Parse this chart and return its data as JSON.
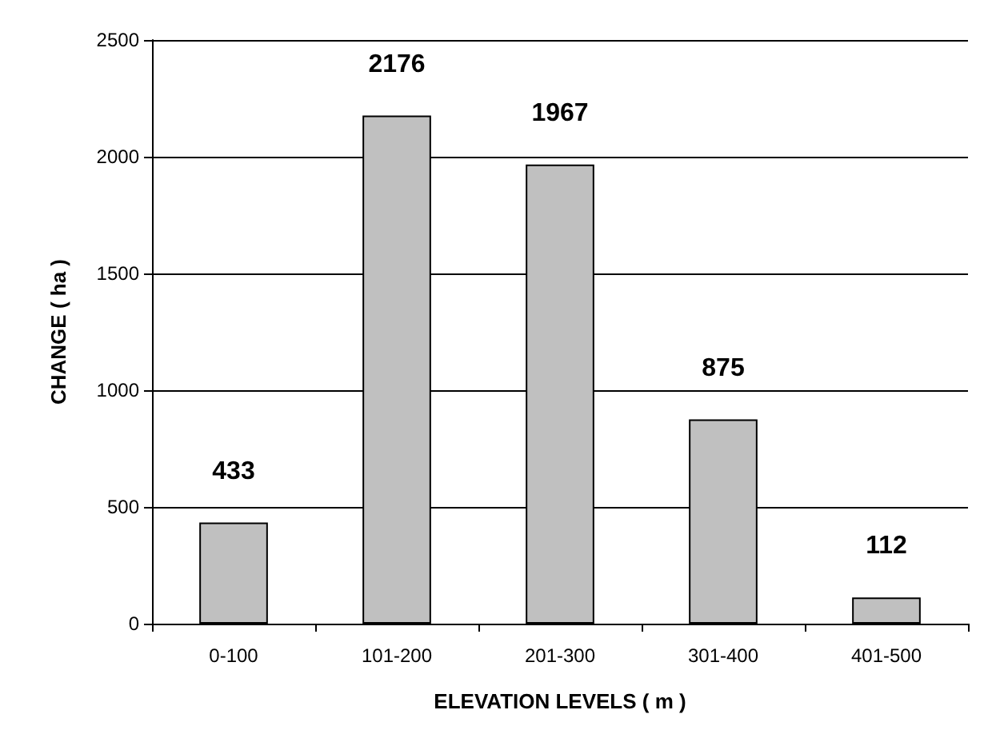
{
  "chart_data": {
    "type": "bar",
    "xlabel": "ELEVATION LEVELS ( m )",
    "ylabel": "CHANGE ( ha )",
    "categories": [
      "0-100",
      "101-200",
      "201-300",
      "301-400",
      "401-500"
    ],
    "values": [
      433,
      2176,
      1967,
      875,
      112
    ],
    "color": "#c0c0c0",
    "ylim": [
      0,
      2500
    ],
    "yticks": [
      0,
      500,
      1000,
      1500,
      2000,
      2500
    ],
    "grid": "y",
    "data_labels": true
  }
}
